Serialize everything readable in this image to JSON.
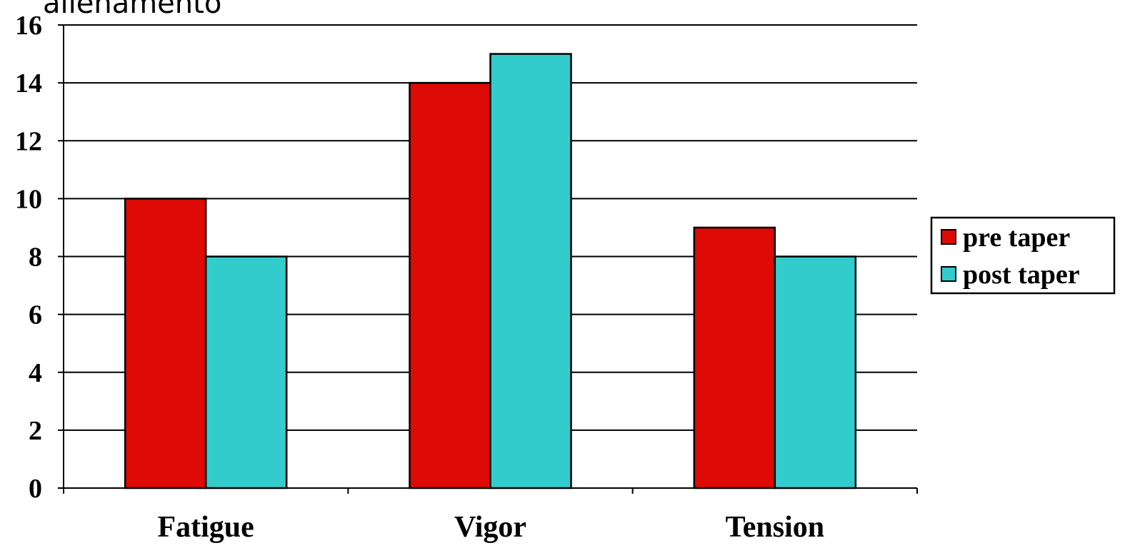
{
  "chart_data": {
    "type": "bar",
    "title": "allenamento",
    "categories": [
      "Fatigue",
      "Vigor",
      "Tension"
    ],
    "series": [
      {
        "name": "pre taper",
        "values": [
          10,
          14,
          9
        ],
        "color": "#dd0a05"
      },
      {
        "name": "post taper",
        "values": [
          8,
          15,
          8
        ],
        "color": "#33cccc"
      }
    ],
    "ylim": [
      0,
      16
    ],
    "yticks": [
      0,
      2,
      4,
      6,
      8,
      10,
      12,
      14,
      16
    ],
    "grid": true,
    "legend_position": "right"
  }
}
